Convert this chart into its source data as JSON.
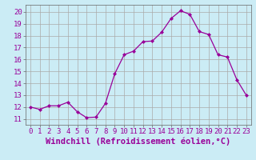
{
  "x": [
    0,
    1,
    2,
    3,
    4,
    5,
    6,
    7,
    8,
    9,
    10,
    11,
    12,
    13,
    14,
    15,
    16,
    17,
    18,
    19,
    20,
    21,
    22,
    23
  ],
  "y": [
    12.0,
    11.8,
    12.1,
    12.1,
    12.4,
    11.6,
    11.1,
    11.15,
    12.3,
    14.8,
    16.4,
    16.7,
    17.5,
    17.55,
    18.3,
    19.45,
    20.1,
    19.8,
    18.35,
    18.1,
    16.4,
    16.2,
    14.3,
    13.0
  ],
  "line_color": "#990099",
  "marker": "D",
  "marker_size": 2.0,
  "bg_color": "#cbecf5",
  "grid_color": "#aaaaaa",
  "xlabel": "Windchill (Refroidissement éolien,°C)",
  "tick_fontsize": 6.5,
  "xlabel_fontsize": 7.5,
  "xlim": [
    -0.5,
    23.5
  ],
  "ylim": [
    10.5,
    20.6
  ],
  "yticks": [
    11,
    12,
    13,
    14,
    15,
    16,
    17,
    18,
    19,
    20
  ],
  "xticks": [
    0,
    1,
    2,
    3,
    4,
    5,
    6,
    7,
    8,
    9,
    10,
    11,
    12,
    13,
    14,
    15,
    16,
    17,
    18,
    19,
    20,
    21,
    22,
    23
  ]
}
